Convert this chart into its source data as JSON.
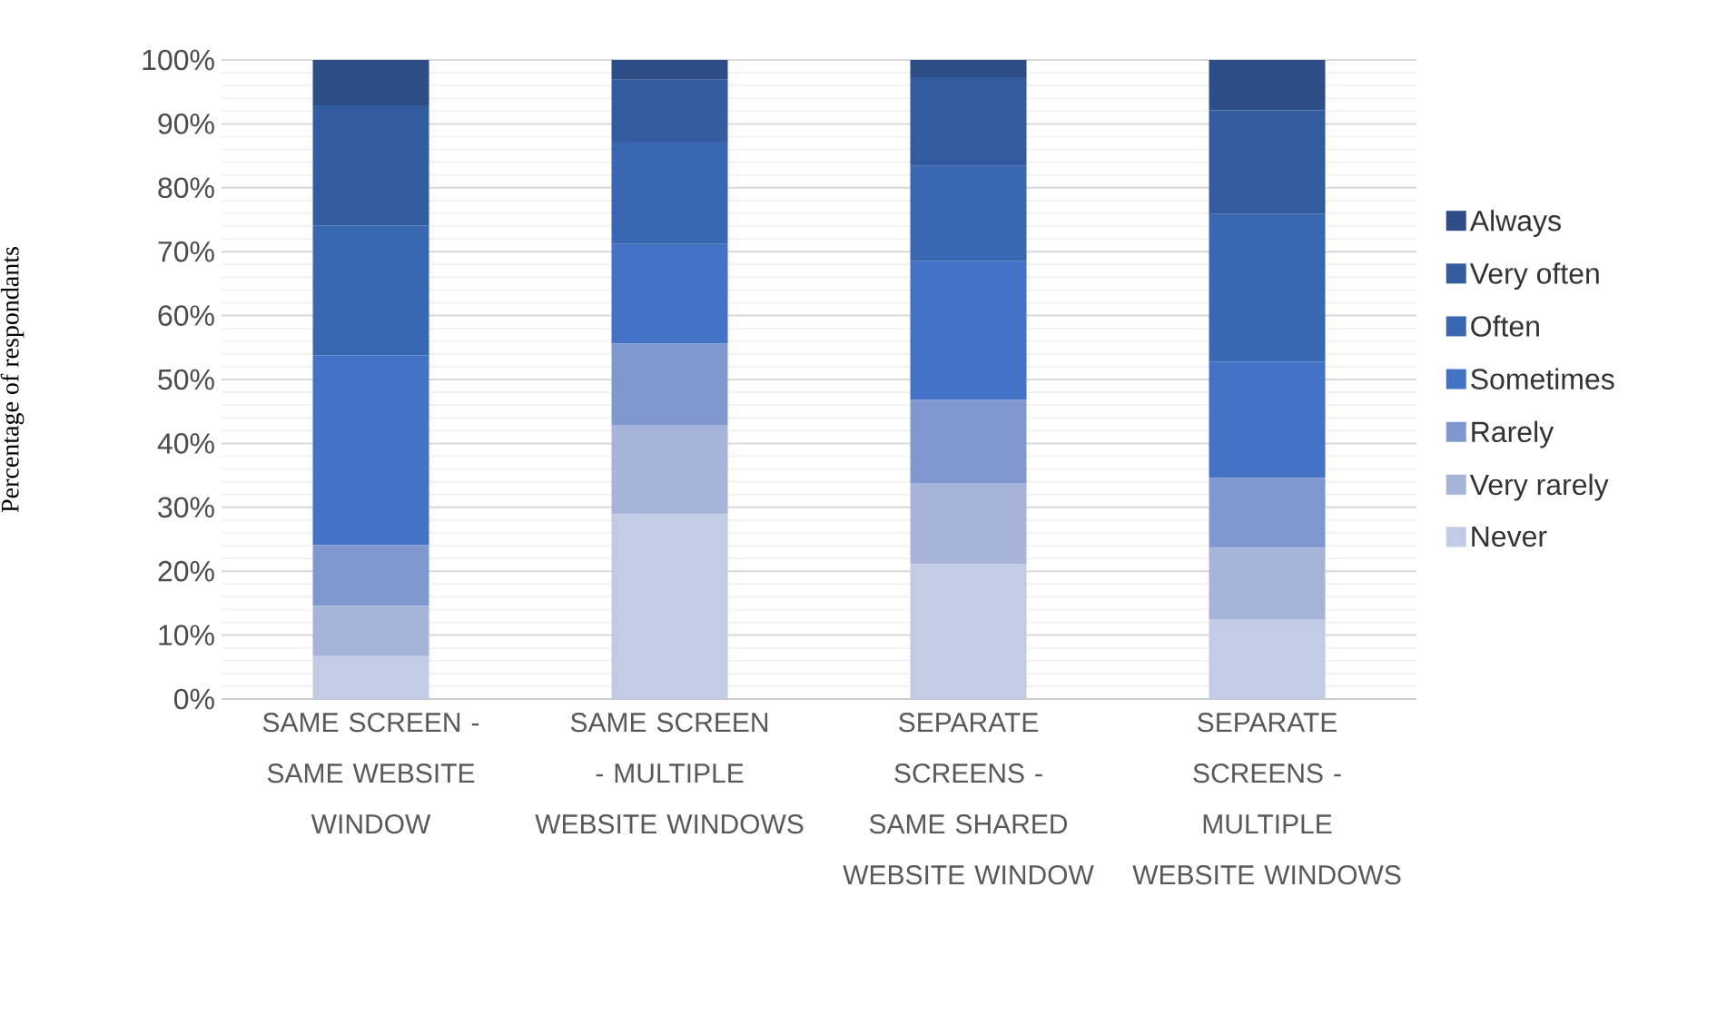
{
  "chart_data": {
    "type": "bar",
    "stacked": true,
    "ylabel": "Percentage of respondants",
    "categories": [
      "SAME SCREEN - SAME WEBSITE WINDOW",
      "SAME SCREEN - MULTIPLE WEBSITE WINDOWS",
      "SEPARATE SCREENS - SAME SHARED WEBSITE WINDOW",
      "SEPARATE SCREENS - MULTIPLE WEBSITE WINDOWS"
    ],
    "series": [
      {
        "name": "Never",
        "color": "#c1cbe4",
        "values": [
          6.7,
          28.9,
          21.1,
          12.4
        ]
      },
      {
        "name": "Very rarely",
        "color": "#a6b4da",
        "values": [
          7.9,
          14.0,
          12.6,
          11.3
        ]
      },
      {
        "name": "Rarely",
        "color": "#8098d0",
        "values": [
          9.5,
          12.7,
          13.1,
          10.9
        ]
      },
      {
        "name": "Sometimes",
        "color": "#4472c4",
        "values": [
          29.7,
          15.6,
          21.7,
          18.2
        ]
      },
      {
        "name": "Often",
        "color": "#3a67b1",
        "values": [
          20.3,
          16.0,
          14.9,
          23.1
        ]
      },
      {
        "name": "Very often",
        "color": "#335c9f",
        "values": [
          18.8,
          9.7,
          13.9,
          16.2
        ]
      },
      {
        "name": "Always",
        "color": "#2e4d87",
        "values": [
          7.1,
          3.1,
          2.7,
          7.9
        ]
      }
    ],
    "ylim": [
      0,
      100
    ],
    "yticks": [
      {
        "value": 0,
        "label": "0%"
      },
      {
        "value": 10,
        "label": "10%"
      },
      {
        "value": 20,
        "label": "20%"
      },
      {
        "value": 30,
        "label": "30%"
      },
      {
        "value": 40,
        "label": "40%"
      },
      {
        "value": 50,
        "label": "50%"
      },
      {
        "value": 60,
        "label": "60%"
      },
      {
        "value": 70,
        "label": "70%"
      },
      {
        "value": 80,
        "label": "80%"
      },
      {
        "value": 90,
        "label": "90%"
      },
      {
        "value": 100,
        "label": "100%"
      }
    ],
    "grid": "y",
    "legend": "right"
  }
}
